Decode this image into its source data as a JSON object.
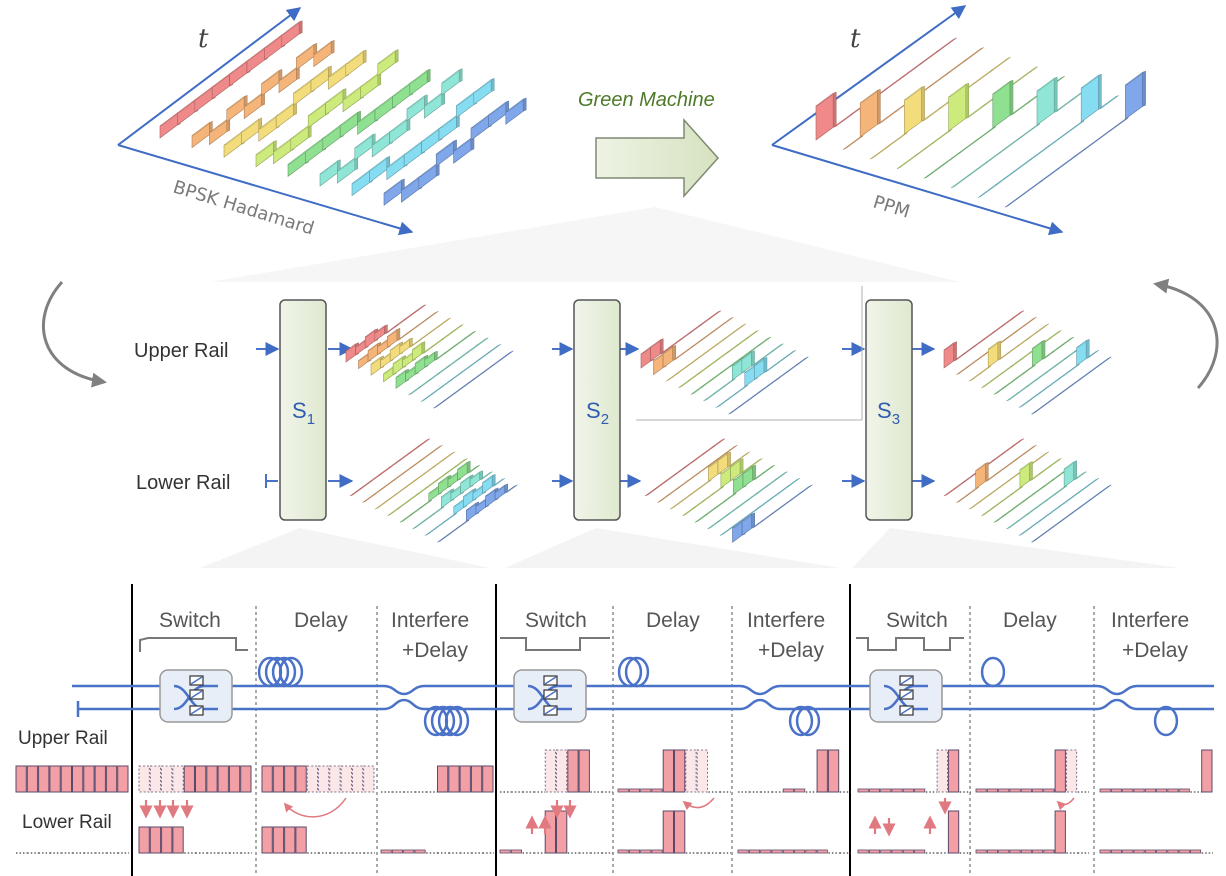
{
  "colors": {
    "axis": "#3f6cc4",
    "fiber": "#4a72c8",
    "pulse_fill": "#f2a0a6",
    "pulse_stroke": "#5a4a6a",
    "switch_box": "#e8eef7",
    "arrow_fill": "#e4ecd4",
    "gray_arrow": "#808080",
    "palette": [
      "#f08a8a",
      "#f5b47a",
      "#f3dc7c",
      "#cdeb7c",
      "#8fe090",
      "#8fe6d6",
      "#86dcf0",
      "#7fa7ea",
      "#9b94ea",
      "#e6a3ea"
    ]
  },
  "top": {
    "left_panel": {
      "time_label": "t",
      "axis_label": "BPSK  Hadamard"
    },
    "right_panel": {
      "time_label": "t",
      "axis_label": "PPM"
    },
    "transform_label": "Green Machine"
  },
  "middle": {
    "upper_rail_label": "Upper Rail",
    "lower_rail_label": "Lower Rail",
    "stages": [
      {
        "name": "S",
        "sub": "1"
      },
      {
        "name": "S",
        "sub": "2"
      },
      {
        "name": "S",
        "sub": "3"
      }
    ]
  },
  "bottom": {
    "upper_rail_label": "Upper Rail",
    "lower_rail_label": "Lower Rail",
    "stage_labels": {
      "switch": "Switch",
      "delay": "Delay",
      "interfere_line1": "Interfere",
      "interfere_line2": "+Delay"
    }
  }
}
